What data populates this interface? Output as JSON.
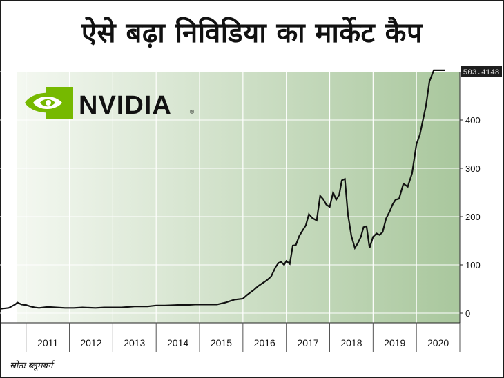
{
  "title": "ऐसे बढ़ा निविडिया का मार्केट कैप",
  "logo": {
    "text": "NVIDIA",
    "mark": "nvidia-eye-logo"
  },
  "source": "स्रोतः ब्लूमबर्ग",
  "colors": {
    "logo_green": "#76b900",
    "line": "#111111",
    "shade_dark": "#a9c79d",
    "shade_light": "#f4f8f1"
  },
  "chart_data": {
    "type": "line",
    "xlabel": "",
    "ylabel": "",
    "xlim": [
      2010.4,
      2021
    ],
    "ylim": [
      -20,
      500
    ],
    "x_ticks": [
      2011,
      2012,
      2013,
      2014,
      2015,
      2016,
      2017,
      2018,
      2019,
      2020
    ],
    "y_ticks": [
      0,
      100,
      200,
      300,
      400
    ],
    "last_value_label": "503.4148",
    "grid": true,
    "series": [
      {
        "x": [
          2010.4,
          2010.6,
          2010.75,
          2010.8,
          2010.9,
          2011.0,
          2011.1,
          2011.2,
          2011.3,
          2011.5,
          2011.7,
          2011.9,
          2012.1,
          2012.3,
          2012.6,
          2012.8,
          2013.0,
          2013.2,
          2013.5,
          2013.8,
          2014.0,
          2014.2,
          2014.5,
          2014.7,
          2014.9,
          2015.0,
          2015.2,
          2015.4,
          2015.6,
          2015.8,
          2016.0,
          2016.1,
          2016.25,
          2016.35,
          2016.45,
          2016.55,
          2016.65,
          2016.75,
          2016.82,
          2016.88,
          2016.95,
          2017.0,
          2017.08,
          2017.15,
          2017.22,
          2017.3,
          2017.38,
          2017.45,
          2017.52,
          2017.6,
          2017.7,
          2017.78,
          2017.85,
          2017.92,
          2018.0,
          2018.08,
          2018.15,
          2018.22,
          2018.28,
          2018.35,
          2018.42,
          2018.5,
          2018.58,
          2018.65,
          2018.72,
          2018.78,
          2018.85,
          2018.92,
          2019.0,
          2019.08,
          2019.15,
          2019.22,
          2019.3,
          2019.38,
          2019.45,
          2019.52,
          2019.6,
          2019.7,
          2019.8,
          2019.9,
          2020.0,
          2020.08,
          2020.15,
          2020.22,
          2020.3,
          2020.4,
          2020.5,
          2020.55,
          2020.6,
          2020.65
        ],
        "values": [
          9,
          11,
          18,
          22,
          18,
          17,
          14,
          12,
          11,
          13,
          12,
          11,
          11,
          12,
          11,
          12,
          12,
          12,
          14,
          14,
          16,
          16,
          17,
          17,
          18,
          18,
          18,
          18,
          22,
          28,
          30,
          38,
          48,
          56,
          62,
          68,
          76,
          95,
          104,
          106,
          100,
          108,
          102,
          140,
          141,
          160,
          172,
          182,
          205,
          197,
          192,
          243,
          236,
          225,
          220,
          250,
          235,
          245,
          275,
          278,
          205,
          160,
          135,
          145,
          158,
          178,
          180,
          135,
          158,
          165,
          162,
          168,
          196,
          210,
          225,
          235,
          237,
          268,
          262,
          290,
          350,
          370,
          400,
          430,
          480,
          503,
          503,
          503,
          503,
          503
        ]
      }
    ]
  }
}
